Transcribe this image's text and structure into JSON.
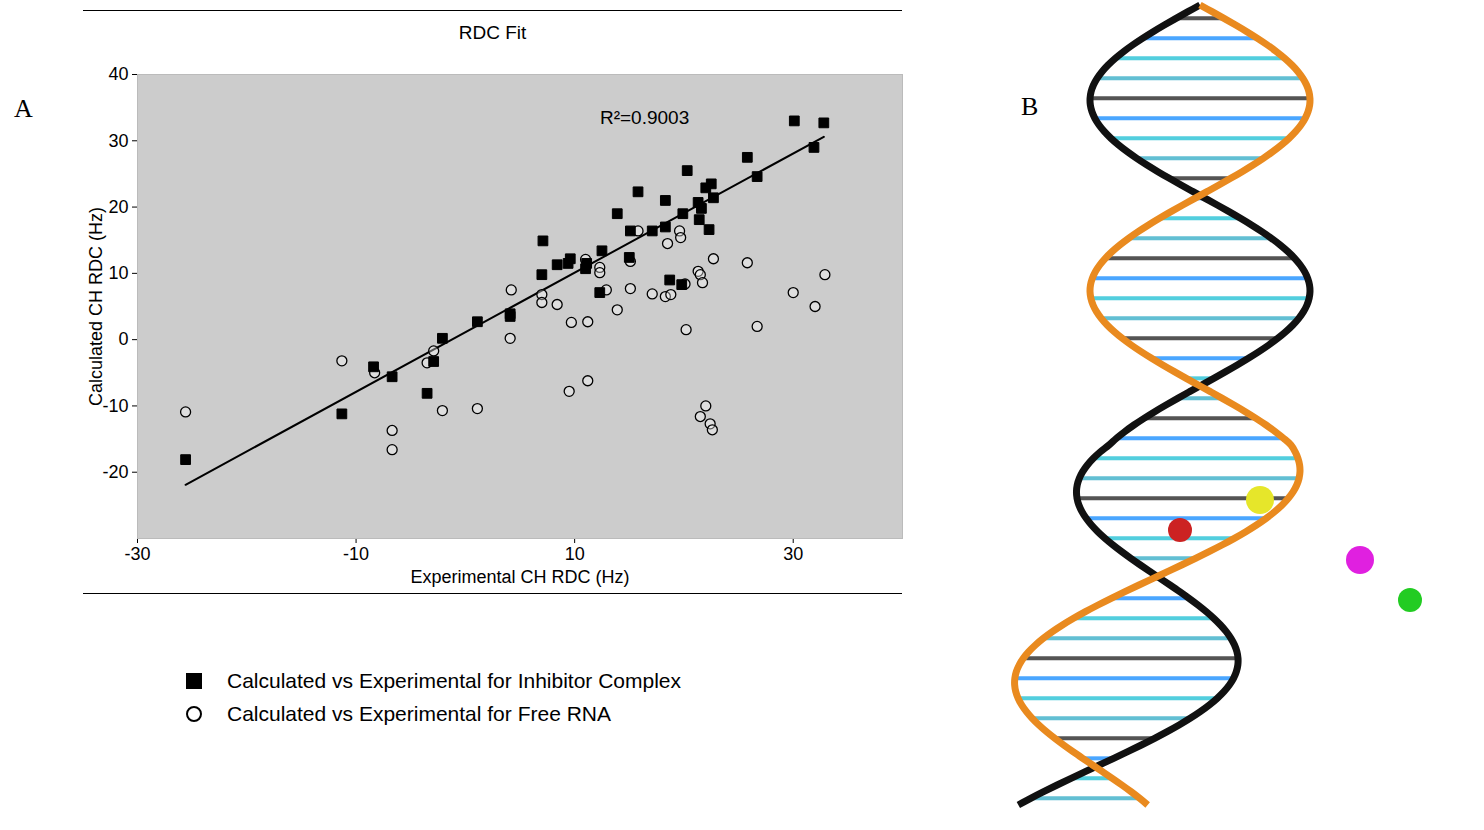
{
  "chart_data": {
    "type": "scatter",
    "title": "RDC Fit",
    "xlabel": "Experimental CH RDC (Hz)",
    "ylabel": "Calculated CH RDC (Hz)",
    "xlim": [
      -30,
      40
    ],
    "ylim": [
      -30,
      40
    ],
    "xticks": [
      -30,
      -10,
      10,
      30
    ],
    "yticks": [
      -20,
      -10,
      0,
      10,
      20,
      30,
      40
    ],
    "grid": false,
    "legend": "bottom",
    "annotations": [
      {
        "text": "R²=0.9003",
        "x": 16.4,
        "y": 33.5
      }
    ],
    "fit_line": {
      "x": [
        -25.6,
        32.8
      ],
      "y": [
        -21.9,
        30.6
      ]
    },
    "series": [
      {
        "name": "Calculated vs Experimental for Free RNA",
        "color": "#000000",
        "marker": "open_circle",
        "x": [
          -25.6,
          -11.3,
          -8.3,
          -6.7,
          -6.7,
          -3.5,
          -2.9,
          -2.1,
          1.1,
          4.1,
          4.2,
          7.0,
          7.0,
          8.4,
          9.5,
          9.7,
          11.0,
          11.2,
          11.2,
          12.3,
          12.3,
          12.9,
          13.9,
          15.1,
          15.1,
          15.8,
          17.1,
          18.3,
          18.8,
          18.5,
          19.6,
          19.7,
          20.1,
          20.2,
          21.3,
          21.5,
          21.7,
          21.5,
          22.0,
          22.4,
          22.6,
          22.7,
          25.8,
          26.7,
          30.0,
          32.0,
          32.9
        ],
        "values": [
          -10.9,
          -3.2,
          -5.0,
          -13.7,
          -16.6,
          -3.5,
          -1.7,
          -10.7,
          -10.4,
          0.2,
          7.5,
          6.8,
          5.6,
          5.3,
          -7.8,
          2.6,
          12.1,
          2.7,
          -6.2,
          10.9,
          10.1,
          7.5,
          4.5,
          7.7,
          11.8,
          16.4,
          6.9,
          6.5,
          6.8,
          14.5,
          16.4,
          15.4,
          8.4,
          1.5,
          10.3,
          9.8,
          8.6,
          -11.6,
          -10.0,
          -12.7,
          -13.6,
          12.2,
          11.6,
          2.0,
          7.1,
          5.0,
          9.8
        ]
      },
      {
        "name": "Calculated vs Experimental for Inhibitor Complex",
        "color": "#000000",
        "marker": "square",
        "x": [
          -25.6,
          -11.3,
          -8.4,
          -6.7,
          -3.5,
          -2.9,
          -2.1,
          1.1,
          4.1,
          4.1,
          7.1,
          7.0,
          8.4,
          9.6,
          9.4,
          11.0,
          11.1,
          12.3,
          12.5,
          13.9,
          15.1,
          15.0,
          15.8,
          17.1,
          18.3,
          18.3,
          18.7,
          19.8,
          19.9,
          20.3,
          21.3,
          21.4,
          21.6,
          22.0,
          22.3,
          22.5,
          22.7,
          25.8,
          26.7,
          30.1,
          31.9,
          32.8
        ],
        "values": [
          -18.1,
          -11.2,
          -4.1,
          -5.6,
          -8.1,
          -3.3,
          0.2,
          2.7,
          3.9,
          3.5,
          14.9,
          9.8,
          11.3,
          12.2,
          11.5,
          10.7,
          11.5,
          7.1,
          13.4,
          19.0,
          16.4,
          12.4,
          22.3,
          16.4,
          21.0,
          17.0,
          9.0,
          8.3,
          19.0,
          25.5,
          20.7,
          18.1,
          19.8,
          22.9,
          16.6,
          23.5,
          21.4,
          27.5,
          24.6,
          33.0,
          29.0,
          32.7
        ]
      }
    ]
  },
  "panel_labels": [
    "A",
    "B"
  ]
}
